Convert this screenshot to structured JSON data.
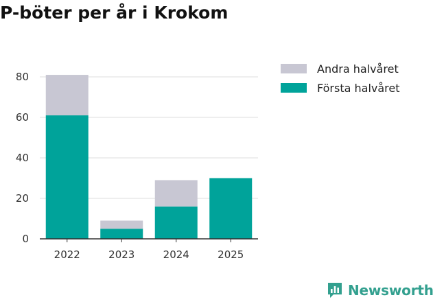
{
  "chart_data": {
    "type": "bar",
    "stacked": true,
    "title": "P-böter per år i Krokom",
    "xlabel": "",
    "ylabel": "",
    "categories": [
      "2022",
      "2023",
      "2024",
      "2025"
    ],
    "series": [
      {
        "name": "Första halvåret",
        "color": "#00a39a",
        "values": [
          61,
          5,
          16,
          30
        ]
      },
      {
        "name": "Andra halvåret",
        "color": "#c8c7d3",
        "values": [
          20,
          4,
          13,
          0
        ]
      }
    ],
    "ylim": [
      0,
      80
    ],
    "yticks": [
      0,
      20,
      40,
      60,
      80
    ],
    "grid": true,
    "legend_position": "top-right",
    "legend_order": [
      "Andra halvåret",
      "Första halvåret"
    ]
  },
  "branding": {
    "logo_text": "Newsworthy",
    "logo_color": "#33a08f",
    "icon": "newsworthy-chart-icon"
  }
}
